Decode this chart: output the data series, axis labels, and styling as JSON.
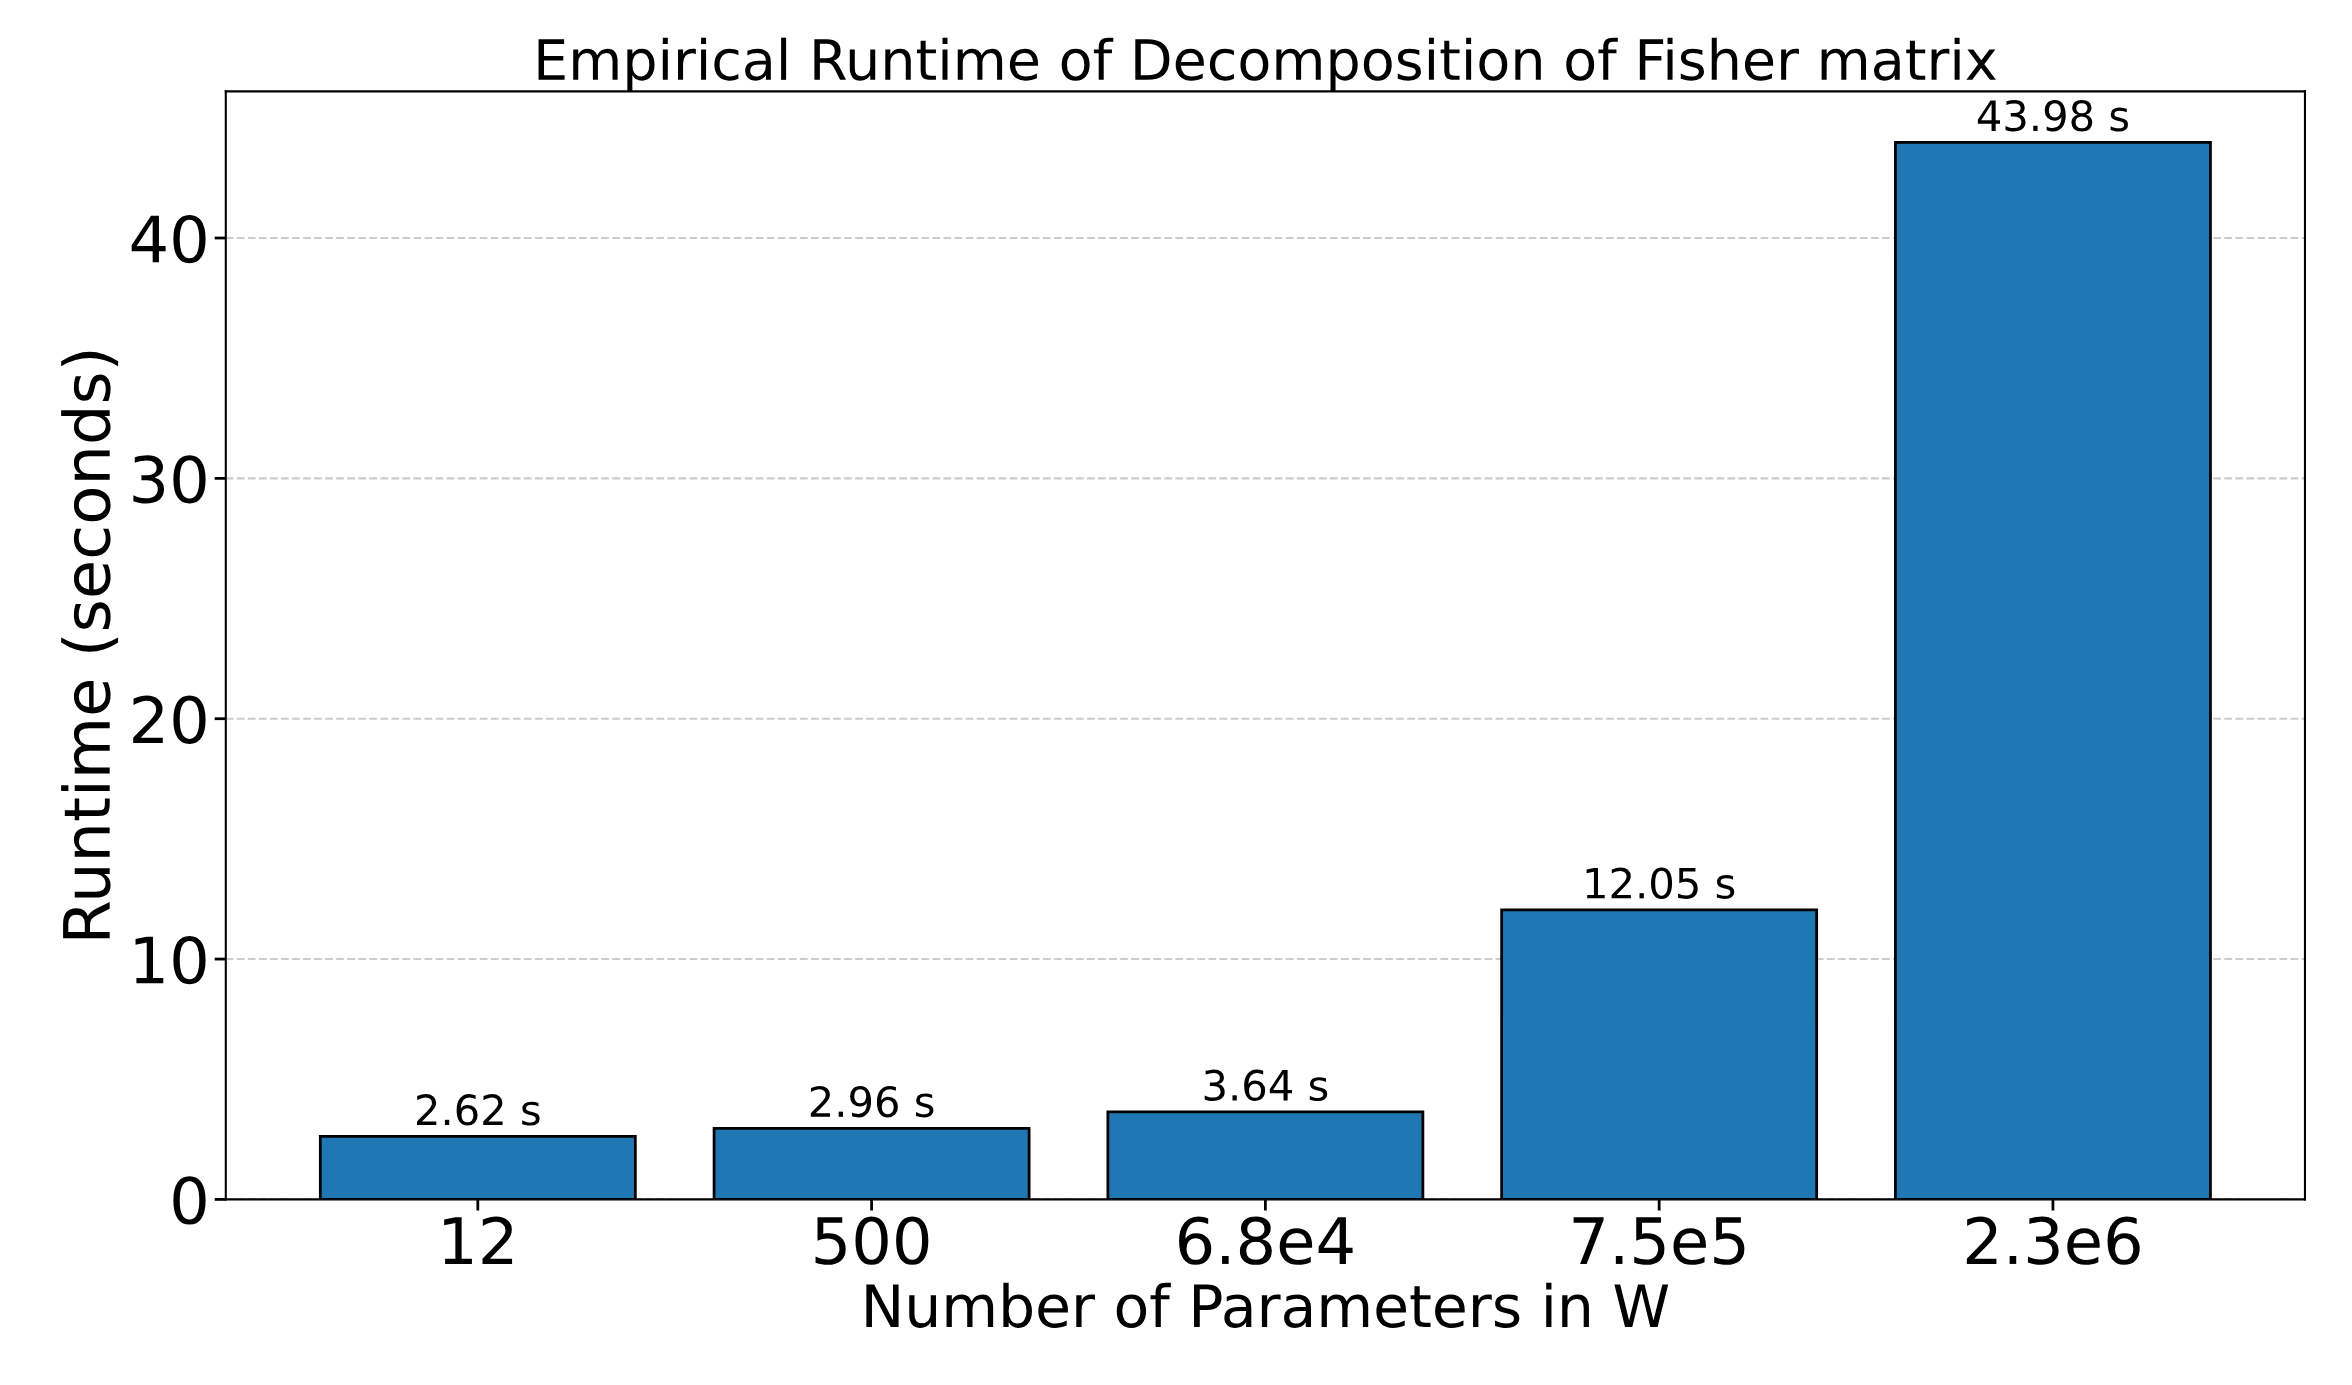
{
  "chart_data": {
    "type": "bar",
    "title": "Empirical Runtime of Decomposition of Fisher matrix",
    "xlabel": "Number of Parameters in W",
    "ylabel": "Runtime (seconds)",
    "categories": [
      "12",
      "500",
      "6.8e4",
      "7.5e5",
      "2.3e6"
    ],
    "values": [
      2.62,
      2.96,
      3.64,
      12.05,
      43.98
    ],
    "value_labels": [
      "2.62 s",
      "2.96 s",
      "3.64 s",
      "12.05 s",
      "43.98 s"
    ],
    "color": "#1f77b4",
    "ylim": [
      0,
      46.1
    ],
    "yticks": [
      0,
      10,
      20,
      30,
      40
    ],
    "grid": "y",
    "legend": false
  }
}
